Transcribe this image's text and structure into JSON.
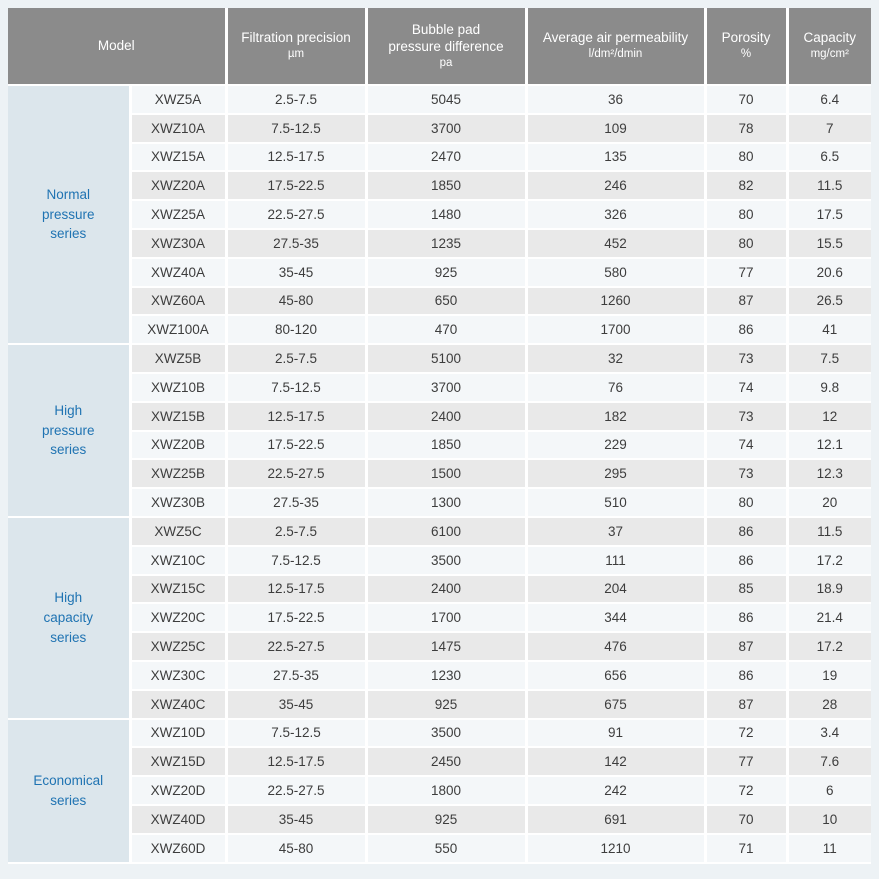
{
  "page": {
    "background": "#edf2f5"
  },
  "colors": {
    "header_bg": "#8b8b8b",
    "header_text": "#ffffff",
    "series_bg": "#dce6ec",
    "series_text": "#1f73b2",
    "row_light": "#f4f7f9",
    "row_dark": "#e9e9e9",
    "cell_text": "#3d3d3d",
    "divider": "#ffffff"
  },
  "table": {
    "header": [
      {
        "id": "model",
        "lines": [
          "Model"
        ],
        "unit": ""
      },
      {
        "id": "filtration-precision",
        "lines": [
          "Filtration precision"
        ],
        "unit": "µm"
      },
      {
        "id": "pressure-difference",
        "lines": [
          "Bubble pad",
          "pressure difference"
        ],
        "unit": "pa"
      },
      {
        "id": "air-permeability",
        "lines": [
          "Average air permeability"
        ],
        "unit": "l/dm²/dmin"
      },
      {
        "id": "porosity",
        "lines": [
          "Porosity"
        ],
        "unit": "%"
      },
      {
        "id": "capacity",
        "lines": [
          "Capacity"
        ],
        "unit": "mg/cm²"
      }
    ],
    "groups": [
      {
        "series": "Normal pressure series",
        "series_lines": [
          "Normal",
          "pressure",
          "series"
        ],
        "rows": [
          {
            "model": "XWZ5A",
            "filtration_precision": "2.5-7.5",
            "pressure_difference": "5045",
            "air_permeability": "36",
            "porosity": "70",
            "capacity": "6.4"
          },
          {
            "model": "XWZ10A",
            "filtration_precision": "7.5-12.5",
            "pressure_difference": "3700",
            "air_permeability": "109",
            "porosity": "78",
            "capacity": "7"
          },
          {
            "model": "XWZ15A",
            "filtration_precision": "12.5-17.5",
            "pressure_difference": "2470",
            "air_permeability": "135",
            "porosity": "80",
            "capacity": "6.5"
          },
          {
            "model": "XWZ20A",
            "filtration_precision": "17.5-22.5",
            "pressure_difference": "1850",
            "air_permeability": "246",
            "porosity": "82",
            "capacity": "11.5"
          },
          {
            "model": "XWZ25A",
            "filtration_precision": "22.5-27.5",
            "pressure_difference": "1480",
            "air_permeability": "326",
            "porosity": "80",
            "capacity": "17.5"
          },
          {
            "model": "XWZ30A",
            "filtration_precision": "27.5-35",
            "pressure_difference": "1235",
            "air_permeability": "452",
            "porosity": "80",
            "capacity": "15.5"
          },
          {
            "model": "XWZ40A",
            "filtration_precision": "35-45",
            "pressure_difference": "925",
            "air_permeability": "580",
            "porosity": "77",
            "capacity": "20.6"
          },
          {
            "model": "XWZ60A",
            "filtration_precision": "45-80",
            "pressure_difference": "650",
            "air_permeability": "1260",
            "porosity": "87",
            "capacity": "26.5"
          },
          {
            "model": "XWZ100A",
            "filtration_precision": "80-120",
            "pressure_difference": "470",
            "air_permeability": "1700",
            "porosity": "86",
            "capacity": "41"
          }
        ]
      },
      {
        "series": "High pressure series",
        "series_lines": [
          "High",
          "pressure",
          "series"
        ],
        "rows": [
          {
            "model": "XWZ5B",
            "filtration_precision": "2.5-7.5",
            "pressure_difference": "5100",
            "air_permeability": "32",
            "porosity": "73",
            "capacity": "7.5"
          },
          {
            "model": "XWZ10B",
            "filtration_precision": "7.5-12.5",
            "pressure_difference": "3700",
            "air_permeability": "76",
            "porosity": "74",
            "capacity": "9.8"
          },
          {
            "model": "XWZ15B",
            "filtration_precision": "12.5-17.5",
            "pressure_difference": "2400",
            "air_permeability": "182",
            "porosity": "73",
            "capacity": "12"
          },
          {
            "model": "XWZ20B",
            "filtration_precision": "17.5-22.5",
            "pressure_difference": "1850",
            "air_permeability": "229",
            "porosity": "74",
            "capacity": "12.1"
          },
          {
            "model": "XWZ25B",
            "filtration_precision": "22.5-27.5",
            "pressure_difference": "1500",
            "air_permeability": "295",
            "porosity": "73",
            "capacity": "12.3"
          },
          {
            "model": "XWZ30B",
            "filtration_precision": "27.5-35",
            "pressure_difference": "1300",
            "air_permeability": "510",
            "porosity": "80",
            "capacity": "20"
          }
        ]
      },
      {
        "series": "High capacity series",
        "series_lines": [
          "High",
          "capacity",
          "series"
        ],
        "rows": [
          {
            "model": "XWZ5C",
            "filtration_precision": "2.5-7.5",
            "pressure_difference": "6100",
            "air_permeability": "37",
            "porosity": "86",
            "capacity": "11.5"
          },
          {
            "model": "XWZ10C",
            "filtration_precision": "7.5-12.5",
            "pressure_difference": "3500",
            "air_permeability": "111",
            "porosity": "86",
            "capacity": "17.2"
          },
          {
            "model": "XWZ15C",
            "filtration_precision": "12.5-17.5",
            "pressure_difference": "2400",
            "air_permeability": "204",
            "porosity": "85",
            "capacity": "18.9"
          },
          {
            "model": "XWZ20C",
            "filtration_precision": "17.5-22.5",
            "pressure_difference": "1700",
            "air_permeability": "344",
            "porosity": "86",
            "capacity": "21.4"
          },
          {
            "model": "XWZ25C",
            "filtration_precision": "22.5-27.5",
            "pressure_difference": "1475",
            "air_permeability": "476",
            "porosity": "87",
            "capacity": "17.2"
          },
          {
            "model": "XWZ30C",
            "filtration_precision": "27.5-35",
            "pressure_difference": "1230",
            "air_permeability": "656",
            "porosity": "86",
            "capacity": "19"
          },
          {
            "model": "XWZ40C",
            "filtration_precision": "35-45",
            "pressure_difference": "925",
            "air_permeability": "675",
            "porosity": "87",
            "capacity": "28"
          }
        ]
      },
      {
        "series": "Economical series",
        "series_lines": [
          "Economical",
          "series"
        ],
        "rows": [
          {
            "model": "XWZ10D",
            "filtration_precision": "7.5-12.5",
            "pressure_difference": "3500",
            "air_permeability": "91",
            "porosity": "72",
            "capacity": "3.4"
          },
          {
            "model": "XWZ15D",
            "filtration_precision": "12.5-17.5",
            "pressure_difference": "2450",
            "air_permeability": "142",
            "porosity": "77",
            "capacity": "7.6"
          },
          {
            "model": "XWZ20D",
            "filtration_precision": "22.5-27.5",
            "pressure_difference": "1800",
            "air_permeability": "242",
            "porosity": "72",
            "capacity": "6"
          },
          {
            "model": "XWZ40D",
            "filtration_precision": "35-45",
            "pressure_difference": "925",
            "air_permeability": "691",
            "porosity": "70",
            "capacity": "10"
          },
          {
            "model": "XWZ60D",
            "filtration_precision": "45-80",
            "pressure_difference": "550",
            "air_permeability": "1210",
            "porosity": "71",
            "capacity": "11"
          }
        ]
      }
    ]
  }
}
